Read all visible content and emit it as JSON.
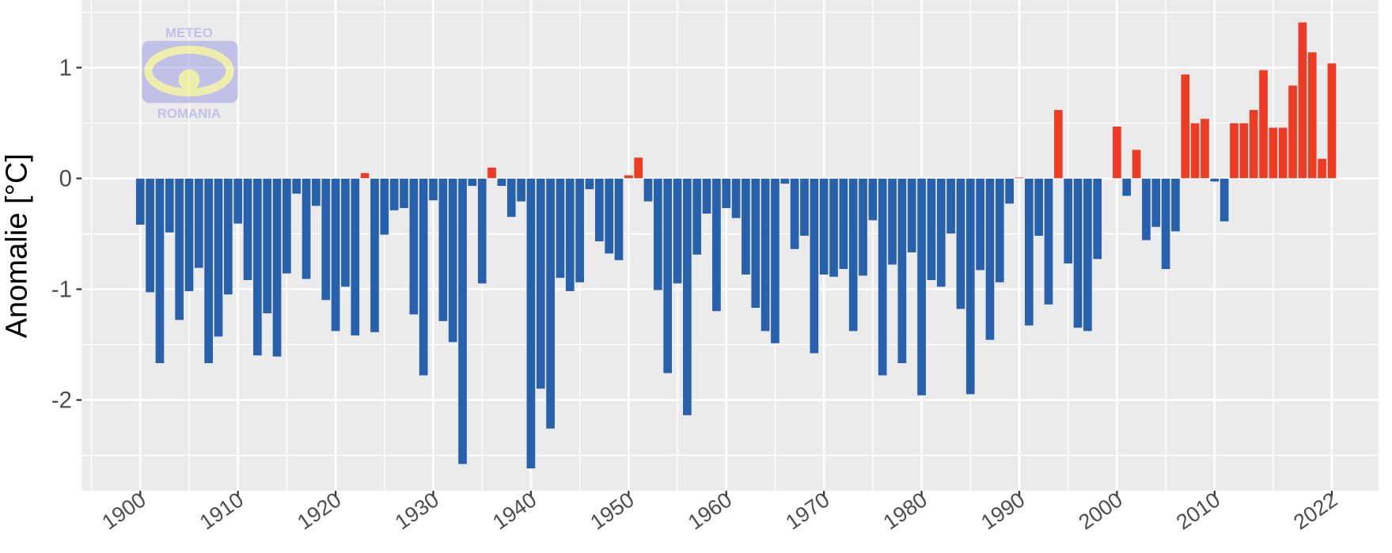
{
  "chart_data": {
    "type": "bar",
    "y_label": "Anomalie [°C]",
    "watermark": {
      "top": "METEO",
      "bottom": "ROMANIA"
    },
    "x": [
      1900,
      1901,
      1902,
      1903,
      1904,
      1905,
      1906,
      1907,
      1908,
      1909,
      1910,
      1911,
      1912,
      1913,
      1914,
      1915,
      1916,
      1917,
      1918,
      1919,
      1920,
      1921,
      1922,
      1923,
      1924,
      1925,
      1926,
      1927,
      1928,
      1929,
      1930,
      1931,
      1932,
      1933,
      1934,
      1935,
      1936,
      1937,
      1938,
      1939,
      1940,
      1941,
      1942,
      1943,
      1944,
      1945,
      1946,
      1947,
      1948,
      1949,
      1950,
      1951,
      1952,
      1953,
      1954,
      1955,
      1956,
      1957,
      1958,
      1959,
      1960,
      1961,
      1962,
      1963,
      1964,
      1965,
      1966,
      1967,
      1968,
      1969,
      1970,
      1971,
      1972,
      1973,
      1974,
      1975,
      1976,
      1977,
      1978,
      1979,
      1980,
      1981,
      1982,
      1983,
      1984,
      1985,
      1986,
      1987,
      1988,
      1989,
      1990,
      1991,
      1992,
      1993,
      1994,
      1995,
      1996,
      1997,
      1998,
      1999,
      2000,
      2001,
      2002,
      2003,
      2004,
      2005,
      2006,
      2007,
      2008,
      2009,
      2010,
      2011,
      2012,
      2013,
      2014,
      2015,
      2016,
      2017,
      2018,
      2019,
      2020,
      2021,
      2022
    ],
    "values": [
      -0.42,
      -1.03,
      -1.67,
      -0.49,
      -1.28,
      -1.02,
      -0.81,
      -1.67,
      -1.43,
      -1.05,
      -0.41,
      -0.92,
      -1.6,
      -1.22,
      -1.61,
      -0.86,
      -0.14,
      -0.91,
      -0.25,
      -1.1,
      -1.38,
      -0.98,
      -1.42,
      0.05,
      -1.39,
      -0.51,
      -0.29,
      -0.27,
      -1.23,
      -1.78,
      -0.2,
      -1.29,
      -1.48,
      -2.58,
      -0.07,
      -0.95,
      0.1,
      -0.07,
      -0.35,
      -0.21,
      -2.62,
      -1.9,
      -2.26,
      -0.9,
      -1.02,
      -0.94,
      -0.1,
      -0.57,
      -0.68,
      -0.74,
      0.03,
      0.19,
      -0.21,
      -1.01,
      -1.76,
      -0.95,
      -2.14,
      -0.69,
      -0.32,
      -1.2,
      -0.27,
      -0.36,
      -0.87,
      -1.17,
      -1.38,
      -1.49,
      -0.05,
      -0.64,
      -0.52,
      -1.58,
      -0.87,
      -0.89,
      -0.82,
      -1.38,
      -0.88,
      -0.38,
      -1.78,
      -0.78,
      -1.67,
      -0.67,
      -1.96,
      -0.92,
      -0.98,
      -0.5,
      -1.18,
      -1.95,
      -0.83,
      -1.46,
      -0.94,
      -0.23,
      0.01,
      -1.33,
      -0.52,
      -1.14,
      0.62,
      -0.77,
      -1.35,
      -1.38,
      -0.73,
      0,
      0.47,
      -0.16,
      0.26,
      -0.56,
      -0.44,
      -0.82,
      -0.48,
      0.94,
      0.5,
      0.54,
      -0.03,
      -0.39,
      0.5,
      0.5,
      0.62,
      0.98,
      0.46,
      0.46,
      0.84,
      1.41,
      1.14,
      0.18,
      1.04
    ],
    "positive_color": "#ee3b24",
    "negative_color": "#2760ad",
    "xlim": [
      1894,
      2026.8
    ],
    "xticks": [
      1900,
      1910,
      1920,
      1930,
      1940,
      1950,
      1960,
      1970,
      1980,
      1990,
      2000,
      2010,
      2022
    ],
    "ylim": [
      -2.82,
      1.61
    ],
    "yticks": [
      -2,
      -1,
      0,
      1
    ],
    "grid": true
  }
}
